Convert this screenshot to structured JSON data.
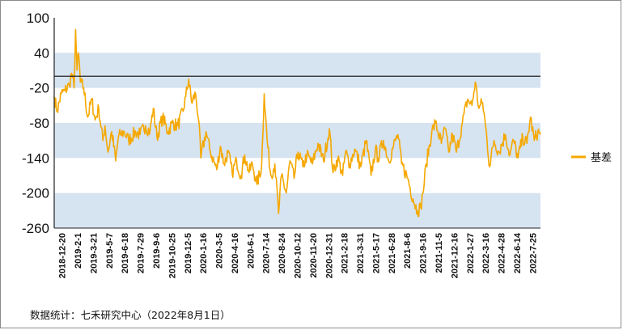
{
  "chart_data": {
    "type": "line",
    "title": "",
    "xlabel": "",
    "ylabel": "",
    "ylim": [
      -260,
      100
    ],
    "y_ticks": [
      100,
      40,
      -20,
      -80,
      -140,
      -200,
      -260
    ],
    "bands": [
      [
        -20,
        40
      ],
      [
        -140,
        -80
      ],
      [
        -260,
        -200
      ]
    ],
    "reference_line": 0,
    "grid": false,
    "legend_position": "right",
    "series": [
      {
        "name": "基差",
        "color": "#F5A800",
        "keypoints": [
          [
            "2018-12-20",
            -35
          ],
          [
            "2018-12-28",
            -60
          ],
          [
            "2019-01-08",
            -30
          ],
          [
            "2019-01-18",
            -25
          ],
          [
            "2019-01-30",
            -15
          ],
          [
            "2019-02-05",
            5
          ],
          [
            "2019-02-12",
            -20
          ],
          [
            "2019-02-16",
            80
          ],
          [
            "2019-02-20",
            10
          ],
          [
            "2019-02-24",
            40
          ],
          [
            "2019-03-01",
            -10
          ],
          [
            "2019-03-10",
            -20
          ],
          [
            "2019-03-21",
            -70
          ],
          [
            "2019-04-01",
            -40
          ],
          [
            "2019-04-10",
            -75
          ],
          [
            "2019-04-20",
            -55
          ],
          [
            "2019-05-01",
            -110
          ],
          [
            "2019-05-07",
            -85
          ],
          [
            "2019-05-15",
            -130
          ],
          [
            "2019-05-25",
            -95
          ],
          [
            "2019-06-05",
            -145
          ],
          [
            "2019-06-12",
            -105
          ],
          [
            "2019-06-18",
            -100
          ],
          [
            "2019-06-28",
            -95
          ],
          [
            "2019-07-10",
            -110
          ],
          [
            "2019-07-29",
            -95
          ],
          [
            "2019-08-10",
            -100
          ],
          [
            "2019-08-25",
            -85
          ],
          [
            "2019-09-06",
            -95
          ],
          [
            "2019-09-15",
            -55
          ],
          [
            "2019-09-25",
            -105
          ],
          [
            "2019-10-10",
            -70
          ],
          [
            "2019-10-25",
            -95
          ],
          [
            "2019-11-05",
            -80
          ],
          [
            "2019-11-20",
            -85
          ],
          [
            "2019-12-05",
            -60
          ],
          [
            "2019-12-12",
            -35
          ],
          [
            "2019-12-20",
            -5
          ],
          [
            "2019-12-28",
            -45
          ],
          [
            "2020-01-08",
            -30
          ],
          [
            "2020-01-16",
            -75
          ],
          [
            "2020-01-22",
            -140
          ],
          [
            "2020-02-05",
            -95
          ],
          [
            "2020-02-15",
            -125
          ],
          [
            "2020-03-05",
            -160
          ],
          [
            "2020-03-15",
            -120
          ],
          [
            "2020-03-25",
            -150
          ],
          [
            "2020-04-05",
            -130
          ],
          [
            "2020-04-16",
            -165
          ],
          [
            "2020-04-28",
            -145
          ],
          [
            "2020-05-10",
            -170
          ],
          [
            "2020-05-20",
            -135
          ],
          [
            "2020-06-01",
            -165
          ],
          [
            "2020-06-10",
            -150
          ],
          [
            "2020-06-22",
            -185
          ],
          [
            "2020-07-05",
            -155
          ],
          [
            "2020-07-12",
            -30
          ],
          [
            "2020-07-20",
            -110
          ],
          [
            "2020-07-30",
            -170
          ],
          [
            "2020-08-10",
            -150
          ],
          [
            "2020-08-20",
            -235
          ],
          [
            "2020-08-28",
            -170
          ],
          [
            "2020-09-10",
            -200
          ],
          [
            "2020-09-20",
            -145
          ],
          [
            "2020-10-01",
            -175
          ],
          [
            "2020-10-12",
            -130
          ],
          [
            "2020-10-25",
            -155
          ],
          [
            "2020-11-05",
            -135
          ],
          [
            "2020-11-20",
            -150
          ],
          [
            "2020-12-05",
            -115
          ],
          [
            "2020-12-20",
            -145
          ],
          [
            "2021-01-05",
            -90
          ],
          [
            "2021-01-15",
            -165
          ],
          [
            "2021-01-28",
            -140
          ],
          [
            "2021-02-10",
            -170
          ],
          [
            "2021-02-18",
            -130
          ],
          [
            "2021-03-01",
            -150
          ],
          [
            "2021-03-15",
            -125
          ],
          [
            "2021-03-31",
            -155
          ],
          [
            "2021-04-15",
            -110
          ],
          [
            "2021-04-28",
            -170
          ],
          [
            "2021-05-10",
            -125
          ],
          [
            "2021-05-17",
            -140
          ],
          [
            "2021-06-01",
            -110
          ],
          [
            "2021-06-15",
            -145
          ],
          [
            "2021-06-28",
            -120
          ],
          [
            "2021-07-10",
            -100
          ],
          [
            "2021-07-20",
            -150
          ],
          [
            "2021-08-06",
            -175
          ],
          [
            "2021-08-20",
            -210
          ],
          [
            "2021-09-01",
            -230
          ],
          [
            "2021-09-10",
            -225
          ],
          [
            "2021-09-16",
            -200
          ],
          [
            "2021-09-25",
            -150
          ],
          [
            "2021-10-10",
            -95
          ],
          [
            "2021-10-20",
            -80
          ],
          [
            "2021-11-05",
            -115
          ],
          [
            "2021-11-15",
            -90
          ],
          [
            "2021-11-25",
            -130
          ],
          [
            "2021-12-05",
            -100
          ],
          [
            "2021-12-16",
            -130
          ],
          [
            "2022-01-01",
            -80
          ],
          [
            "2022-01-15",
            -40
          ],
          [
            "2022-01-27",
            -50
          ],
          [
            "2022-02-05",
            -10
          ],
          [
            "2022-02-15",
            -55
          ],
          [
            "2022-02-25",
            -45
          ],
          [
            "2022-03-05",
            -85
          ],
          [
            "2022-03-16",
            -155
          ],
          [
            "2022-03-28",
            -110
          ],
          [
            "2022-04-10",
            -130
          ],
          [
            "2022-04-28",
            -100
          ],
          [
            "2022-05-10",
            -135
          ],
          [
            "2022-05-20",
            -110
          ],
          [
            "2022-06-01",
            -140
          ],
          [
            "2022-06-14",
            -105
          ],
          [
            "2022-06-25",
            -115
          ],
          [
            "2022-07-05",
            -70
          ],
          [
            "2022-07-15",
            -110
          ],
          [
            "2022-07-25",
            -95
          ],
          [
            "2022-08-01",
            -100
          ]
        ]
      }
    ],
    "x_tick_labels": [
      "2018-12-20",
      "2019-2-1",
      "2019-3-21",
      "2019-5-7",
      "2019-6-18",
      "2019-7-29",
      "2019-9-6",
      "2019-10-25",
      "2019-12-5",
      "2020-1-16",
      "2020-3-5",
      "2020-4-16",
      "2020-6-1",
      "2020-7-14",
      "2020-8-24",
      "2020-10-12",
      "2020-11-20",
      "2020-12-31",
      "2021-2-18",
      "2021-3-31",
      "2021-5-17",
      "2021-6-28",
      "2021-8-6",
      "2021-9-16",
      "2021-11-5",
      "2021-12-16",
      "2022-1-27",
      "2022-3-16",
      "2022-4-28",
      "2022-6-14",
      "2022-7-25"
    ],
    "x_range": [
      "2018-12-20",
      "2022-08-01"
    ]
  },
  "legend_label": "基差",
  "source_text": "数据统计：七禾研究中心（2022年8月1日）",
  "colors": {
    "band": "#D6E3F0",
    "line": "#F5A800",
    "axis": "#222222",
    "background": "#FFFFFF"
  }
}
